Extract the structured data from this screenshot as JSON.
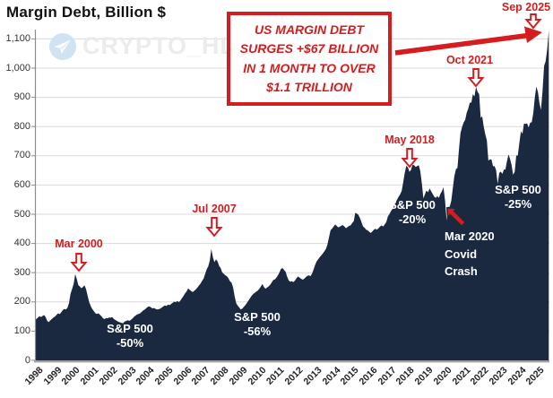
{
  "title": "Margin Debt, Billion $",
  "watermark": {
    "icon": "telegram-plane-icon",
    "text": "CRYPTO_HD"
  },
  "callout": {
    "lines": [
      "US MARGIN DEBT",
      "SURGES +$67 BILLION",
      "IN 1 MONTH TO OVER",
      "$1.1 TRILLION"
    ]
  },
  "annotations": {
    "peaks": [
      {
        "id": "mar2000",
        "label": "Mar 2000"
      },
      {
        "id": "jul2007",
        "label": "Jul 2007"
      },
      {
        "id": "may2018",
        "label": "May 2018"
      },
      {
        "id": "oct2021",
        "label": "Oct 2021"
      },
      {
        "id": "sep2025",
        "label": "Sep 2025"
      }
    ],
    "drawdowns": [
      {
        "id": "sp50",
        "lines": [
          "S&P 500",
          "-50%"
        ]
      },
      {
        "id": "sp56",
        "lines": [
          "S&P 500",
          "-56%"
        ]
      },
      {
        "id": "sp20",
        "lines": [
          "S&P 500",
          "-20%"
        ]
      },
      {
        "id": "sp25",
        "lines": [
          "S&P 500",
          "-25%"
        ]
      }
    ],
    "covid": {
      "lines": [
        "Mar 2020",
        "Covid",
        "Crash"
      ]
    }
  },
  "colors": {
    "area": "#1b2940",
    "red": "#d51c1e",
    "grid": "#dadada",
    "axis": "#8c8c8c",
    "baseline": "#a0a0a0",
    "watermark_text": "#ebebeb",
    "watermark_icon": "#cfe2f3"
  },
  "chart_data": {
    "type": "area",
    "title": "Margin Debt, Billion $",
    "ylabel": "Billion $",
    "x_start_year": 1998,
    "interval_months": 1,
    "x_end": "Sep 2025",
    "ylim": [
      0,
      1150
    ],
    "grid": true,
    "y_ticks": [
      0,
      100,
      200,
      300,
      400,
      500,
      600,
      700,
      800,
      900,
      1000,
      1100
    ],
    "y_tick_labels": [
      "0",
      "100",
      "200",
      "300",
      "400",
      "500",
      "600",
      "700",
      "800",
      "900",
      "1,000",
      "1,100"
    ],
    "x_tick_labels": [
      "1998",
      "1999",
      "2000",
      "2001",
      "2002",
      "2003",
      "2004",
      "2005",
      "2006",
      "2007",
      "2008",
      "2009",
      "2010",
      "2011",
      "2012",
      "2013",
      "2014",
      "2015",
      "2016",
      "2017",
      "2018",
      "2019",
      "2020",
      "2021",
      "2022",
      "2023",
      "2024",
      "2025"
    ],
    "annotated_points": [
      {
        "label": "Mar 2000",
        "value": 295
      },
      {
        "label": "Jul 2007",
        "value": 381
      },
      {
        "label": "May 2018",
        "value": 668
      },
      {
        "label": "Oct 2021",
        "value": 936
      },
      {
        "label": "Sep 2025",
        "value": 1130
      }
    ],
    "values": [
      138,
      142,
      147,
      151,
      148,
      152,
      155,
      147,
      134,
      131,
      137,
      142,
      147,
      150,
      156,
      161,
      158,
      165,
      172,
      176,
      174,
      180,
      196,
      228,
      244,
      262,
      295,
      279,
      258,
      252,
      247,
      251,
      257,
      244,
      222,
      200,
      186,
      176,
      169,
      162,
      159,
      161,
      156,
      151,
      144,
      141,
      145,
      144,
      147,
      146,
      148,
      141,
      138,
      135,
      132,
      130,
      128,
      127,
      133,
      135,
      137,
      135,
      139,
      143,
      149,
      153,
      157,
      159,
      161,
      166,
      171,
      174,
      179,
      183,
      185,
      181,
      178,
      179,
      176,
      174,
      175,
      177,
      181,
      185,
      188,
      186,
      191,
      189,
      193,
      197,
      201,
      199,
      203,
      199,
      205,
      213,
      221,
      229,
      236,
      246,
      241,
      237,
      234,
      238,
      243,
      249,
      256,
      263,
      272,
      280,
      296,
      312,
      322,
      342,
      381,
      352,
      336,
      346,
      339,
      323,
      316,
      301,
      296,
      291,
      288,
      281,
      271,
      266,
      251,
      221,
      196,
      187,
      181,
      174,
      177,
      183,
      189,
      197,
      205,
      213,
      221,
      227,
      231,
      235,
      239,
      245,
      253,
      261,
      251,
      245,
      249,
      253,
      259,
      267,
      275,
      277,
      283,
      291,
      301,
      313,
      316,
      309,
      303,
      286,
      273,
      269,
      271,
      268,
      273,
      281,
      287,
      283,
      279,
      276,
      279,
      285,
      289,
      291,
      288,
      297,
      310,
      326,
      339,
      346,
      353,
      359,
      366,
      373,
      381,
      396,
      421,
      445,
      451,
      458,
      465,
      460,
      455,
      458,
      461,
      463,
      458,
      452,
      456,
      460,
      462,
      470,
      476,
      505,
      502,
      498,
      487,
      473,
      458,
      454,
      447,
      445,
      440,
      436,
      441,
      447,
      450,
      447,
      452,
      458,
      462,
      458,
      465,
      473,
      492,
      500,
      510,
      518,
      528,
      540,
      550,
      560,
      568,
      580,
      610,
      643,
      666,
      660,
      645,
      652,
      669,
      668,
      662,
      665,
      668,
      648,
      605,
      554,
      568,
      581,
      575,
      588,
      579,
      569,
      560,
      556,
      562,
      556,
      570,
      579,
      592,
      545,
      479,
      525,
      525,
      546,
      588,
      630,
      654,
      659,
      722,
      778,
      799,
      814,
      823,
      847,
      862,
      882,
      882,
      911,
      903,
      936,
      919,
      911,
      830,
      835,
      800,
      773,
      753,
      683,
      688,
      687,
      664,
      665,
      651,
      604,
      641,
      646,
      638,
      653,
      653,
      681,
      705,
      689,
      668,
      635,
      646,
      701,
      701,
      742,
      784,
      775,
      810,
      809,
      811,
      797,
      813,
      815,
      846,
      899,
      937,
      918,
      880,
      857,
      921,
      1008,
      1024,
      1063,
      1130
    ]
  }
}
